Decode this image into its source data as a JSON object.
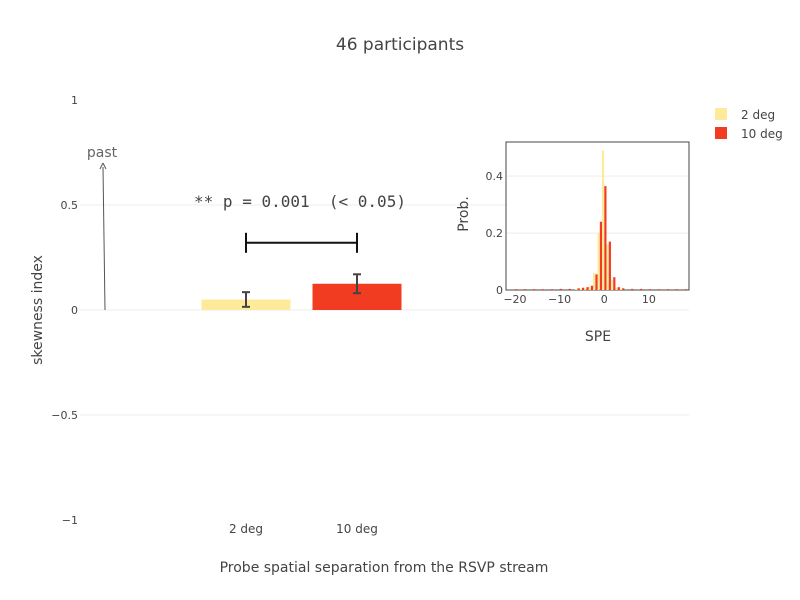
{
  "chart_data": [
    {
      "type": "bar",
      "title": "46 participants",
      "xlabel": "Probe spatial separation from the RSVP stream",
      "ylabel": "skewness index",
      "categories": [
        "2 deg",
        "10 deg"
      ],
      "values": [
        0.05,
        0.125
      ],
      "error": [
        0.035,
        0.045
      ],
      "colors": [
        "#fdeb99",
        "#f13c22"
      ],
      "ylim": [
        -1,
        1
      ],
      "yticks": [
        1,
        0.5,
        0,
        -0.5,
        -1
      ],
      "ytick_labels": [
        "1",
        "0.5",
        "0",
        "−0.5",
        "−1"
      ],
      "grid": true,
      "legend": {
        "position": "top-right",
        "entries": [
          "2 deg",
          "10 deg"
        ]
      },
      "annotations": {
        "arrow_label": "past",
        "arrow_from_y": 0,
        "arrow_to_y": 0.7,
        "significance_text": "** p = 0.001  (< 0.05)",
        "bracket_y": 0.32
      }
    },
    {
      "type": "bar",
      "title": "",
      "xlabel": "SPE",
      "ylabel": "Prob.",
      "xlim": [
        -22,
        19
      ],
      "ylim": [
        0,
        0.52
      ],
      "xticks": [
        -20,
        -10,
        0,
        10
      ],
      "xtick_labels": [
        "−20",
        "−10",
        "0",
        "10"
      ],
      "yticks": [
        0,
        0.2,
        0.4
      ],
      "ytick_labels": [
        "0",
        "0.2",
        "0.4"
      ],
      "series": [
        {
          "name": "2 deg",
          "color": "#fdeb99",
          "x": [
            -6,
            -5,
            -4,
            -3,
            -2,
            -1,
            0,
            1,
            2,
            3,
            4
          ],
          "values": [
            0.004,
            0.005,
            0.006,
            0.012,
            0.06,
            0.2,
            0.49,
            0.16,
            0.035,
            0.008,
            0.004
          ]
        },
        {
          "name": "10 deg",
          "color": "#f13c22",
          "x": [
            -20,
            -18,
            -16,
            -14,
            -12,
            -10,
            -8,
            -6,
            -5,
            -4,
            -3,
            -2,
            -1,
            0,
            1,
            2,
            3,
            4,
            6,
            8,
            10,
            12,
            14,
            16,
            18
          ],
          "values": [
            0.003,
            0.003,
            0.003,
            0.003,
            0.003,
            0.004,
            0.004,
            0.006,
            0.008,
            0.01,
            0.015,
            0.055,
            0.24,
            0.365,
            0.17,
            0.045,
            0.01,
            0.006,
            0.004,
            0.004,
            0.003,
            0.003,
            0.003,
            0.003,
            0.003
          ]
        }
      ]
    }
  ]
}
